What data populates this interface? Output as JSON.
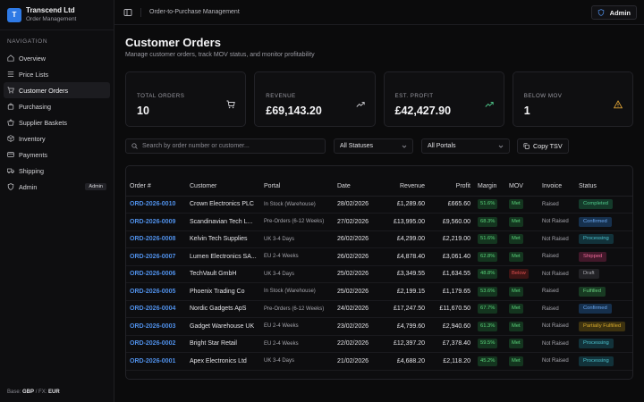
{
  "brand": {
    "initial": "T",
    "name": "Transcend Ltd",
    "subtitle": "Order Management"
  },
  "nav": {
    "heading": "NAVIGATION",
    "items": [
      {
        "label": "Overview",
        "icon": "home-icon"
      },
      {
        "label": "Price Lists",
        "icon": "list-icon"
      },
      {
        "label": "Customer Orders",
        "icon": "cart-icon",
        "active": true
      },
      {
        "label": "Purchasing",
        "icon": "bag-icon"
      },
      {
        "label": "Supplier Baskets",
        "icon": "basket-icon"
      },
      {
        "label": "Inventory",
        "icon": "box-icon"
      },
      {
        "label": "Payments",
        "icon": "card-icon"
      },
      {
        "label": "Shipping",
        "icon": "truck-icon"
      },
      {
        "label": "Admin",
        "icon": "shield-icon",
        "badge": "Admin"
      }
    ]
  },
  "footer": {
    "base_label": "Base:",
    "base": "GBP",
    "fx_label": "/ FX:",
    "fx": "EUR"
  },
  "topbar": {
    "breadcrumb": "Order-to-Purchase Management",
    "user_button": "Admin"
  },
  "page": {
    "title": "Customer Orders",
    "subtitle": "Manage customer orders, track MOV status, and monitor profitability"
  },
  "stats": [
    {
      "label": "TOTAL ORDERS",
      "value": "10",
      "icon": "cart-icon",
      "color": "#cfcfd4"
    },
    {
      "label": "REVENUE",
      "value": "£69,143.20",
      "icon": "trending-up-icon",
      "color": "#cfcfd4"
    },
    {
      "label": "EST. PROFIT",
      "value": "£42,427.90",
      "icon": "trending-up-icon",
      "color": "#4fc98b"
    },
    {
      "label": "BELOW MOV",
      "value": "1",
      "icon": "warning-icon",
      "color": "#e0a437"
    }
  ],
  "filters": {
    "search_placeholder": "Search by order number or customer...",
    "status_select": "All Statuses",
    "portal_select": "All Portals",
    "copy_button": "Copy TSV"
  },
  "table": {
    "columns": [
      "Order #",
      "Customer",
      "Portal",
      "Date",
      "Revenue",
      "Profit",
      "Margin",
      "MOV",
      "Invoice",
      "Status"
    ],
    "rows": [
      {
        "order": "ORD-2026-0010",
        "customer": "Crown Electronics PLC",
        "portal": "In Stock (Warehouse)",
        "date": "28/02/2026",
        "revenue": "£1,289.60",
        "profit": "£665.60",
        "margin": "51.6%",
        "mov": "Met",
        "invoice": "Raised",
        "status": "Completed",
        "status_class": "st-completed"
      },
      {
        "order": "ORD-2026-0009",
        "customer": "Scandinavian Tech L...",
        "portal": "Pre-Orders (6-12 Weeks)",
        "date": "27/02/2026",
        "revenue": "£13,995.00",
        "profit": "£9,560.00",
        "margin": "68.3%",
        "mov": "Met",
        "invoice": "Not Raised",
        "status": "Confirmed",
        "status_class": "st-confirmed"
      },
      {
        "order": "ORD-2026-0008",
        "customer": "Kelvin Tech Supplies",
        "portal": "UK 3-4 Days",
        "date": "26/02/2026",
        "revenue": "£4,299.00",
        "profit": "£2,219.00",
        "margin": "51.6%",
        "mov": "Met",
        "invoice": "Not Raised",
        "status": "Processing",
        "status_class": "st-processing"
      },
      {
        "order": "ORD-2026-0007",
        "customer": "Lumen Electronics SA...",
        "portal": "EU 2-4 Weeks",
        "date": "26/02/2026",
        "revenue": "£4,878.40",
        "profit": "£3,061.40",
        "margin": "62.8%",
        "mov": "Met",
        "invoice": "Raised",
        "status": "Shipped",
        "status_class": "st-shipped"
      },
      {
        "order": "ORD-2026-0006",
        "customer": "TechVault GmbH",
        "portal": "UK 3-4 Days",
        "date": "25/02/2026",
        "revenue": "£3,349.55",
        "profit": "£1,634.55",
        "margin": "48.8%",
        "mov": "Below",
        "invoice": "Not Raised",
        "status": "Draft",
        "status_class": "st-draft"
      },
      {
        "order": "ORD-2026-0005",
        "customer": "Phoenix Trading Co",
        "portal": "In Stock (Warehouse)",
        "date": "25/02/2026",
        "revenue": "£2,199.15",
        "profit": "£1,179.65",
        "margin": "53.6%",
        "mov": "Met",
        "invoice": "Raised",
        "status": "Fulfilled",
        "status_class": "st-fulfilled"
      },
      {
        "order": "ORD-2026-0004",
        "customer": "Nordic Gadgets ApS",
        "portal": "Pre-Orders (6-12 Weeks)",
        "date": "24/02/2026",
        "revenue": "£17,247.50",
        "profit": "£11,670.50",
        "margin": "67.7%",
        "mov": "Met",
        "invoice": "Raised",
        "status": "Confirmed",
        "status_class": "st-confirmed"
      },
      {
        "order": "ORD-2026-0003",
        "customer": "Gadget Warehouse UK",
        "portal": "EU 2-4 Weeks",
        "date": "23/02/2026",
        "revenue": "£4,799.60",
        "profit": "£2,940.60",
        "margin": "61.3%",
        "mov": "Met",
        "invoice": "Not Raised",
        "status": "Partially Fulfilled",
        "status_class": "st-partial"
      },
      {
        "order": "ORD-2026-0002",
        "customer": "Bright Star Retail",
        "portal": "EU 2-4 Weeks",
        "date": "22/02/2026",
        "revenue": "£12,397.20",
        "profit": "£7,378.40",
        "margin": "59.5%",
        "mov": "Met",
        "invoice": "Not Raised",
        "status": "Processing",
        "status_class": "st-processing"
      },
      {
        "order": "ORD-2026-0001",
        "customer": "Apex Electronics Ltd",
        "portal": "UK 3-4 Days",
        "date": "21/02/2026",
        "revenue": "£4,688.20",
        "profit": "£2,118.20",
        "margin": "45.2%",
        "mov": "Met",
        "invoice": "Not Raised",
        "status": "Processing",
        "status_class": "st-processing"
      }
    ]
  }
}
